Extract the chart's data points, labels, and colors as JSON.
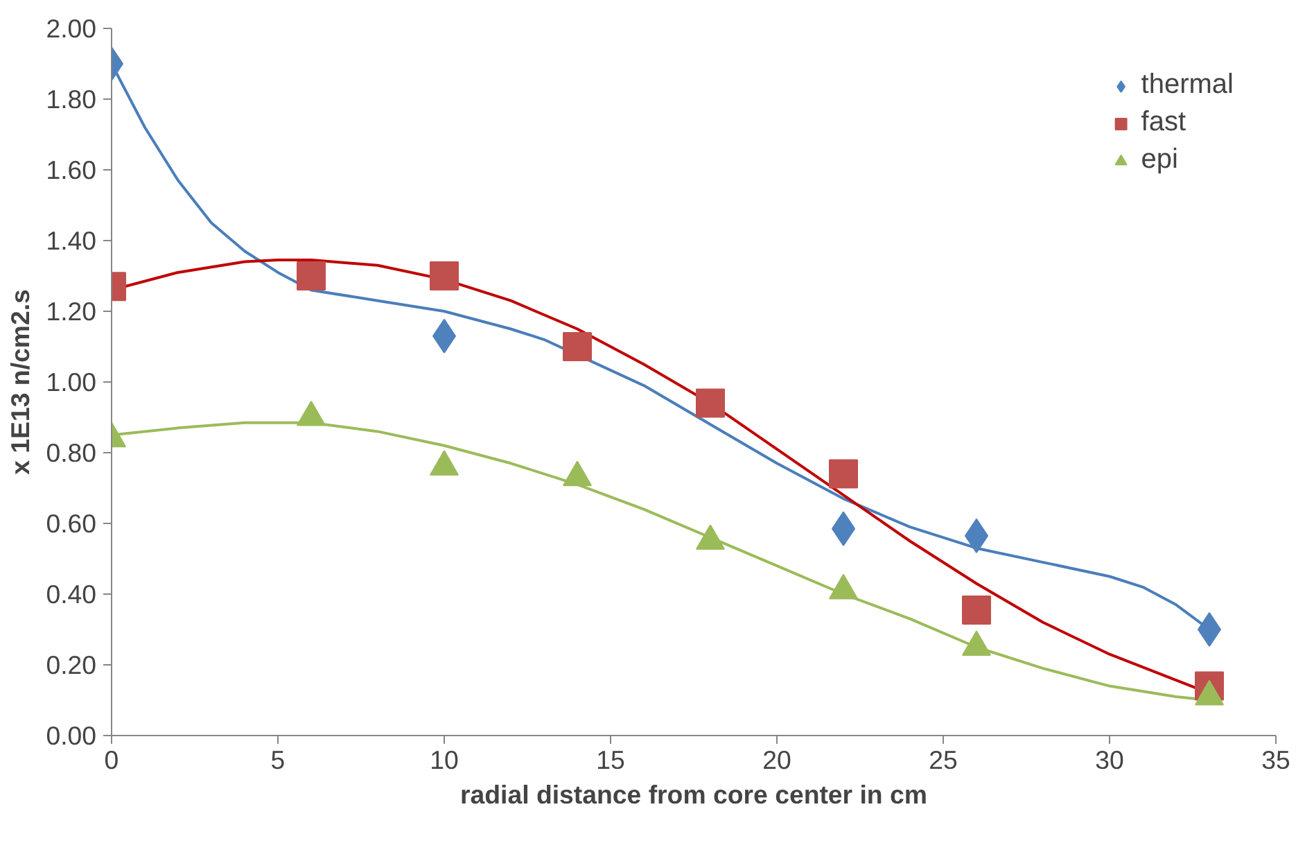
{
  "chart_data": {
    "type": "scatter",
    "xlabel": "radial distance from core center in cm",
    "ylabel": "x 1E13 n/cm2.s",
    "xlim": [
      0,
      35
    ],
    "xticks": [
      0,
      5,
      10,
      15,
      20,
      25,
      30,
      35
    ],
    "ylim": [
      0,
      2
    ],
    "yticks": [
      {
        "value": 0,
        "label": "0.00"
      },
      {
        "value": 0.2,
        "label": "0.20"
      },
      {
        "value": 0.4,
        "label": "0.40"
      },
      {
        "value": 0.6,
        "label": "0.60"
      },
      {
        "value": 0.8,
        "label": "0.80"
      },
      {
        "value": 1.0,
        "label": "1.00"
      },
      {
        "value": 1.2,
        "label": "1.20"
      },
      {
        "value": 1.4,
        "label": "1.40"
      },
      {
        "value": 1.6,
        "label": "1.60"
      },
      {
        "value": 1.8,
        "label": "1.80"
      },
      {
        "value": 2.0,
        "label": "2.00"
      }
    ],
    "grid": false,
    "legend": "top right",
    "series": [
      {
        "type": "line",
        "color": "#4a7ebb",
        "x": [
          0,
          1,
          2,
          3,
          4,
          5,
          6,
          8,
          10,
          12,
          13,
          16,
          18,
          20,
          22,
          24,
          26,
          28,
          30,
          31,
          32,
          33
        ],
        "values": [
          1.9,
          1.72,
          1.57,
          1.45,
          1.37,
          1.31,
          1.26,
          1.23,
          1.2,
          1.15,
          1.12,
          0.99,
          0.88,
          0.77,
          0.67,
          0.59,
          0.53,
          0.49,
          0.45,
          0.42,
          0.37,
          0.3
        ],
        "marker": "none"
      },
      {
        "type": "line",
        "color": "#c00000",
        "x": [
          0,
          2,
          4,
          5,
          6,
          8,
          10,
          12,
          14,
          16,
          18,
          20,
          22,
          24,
          26,
          28,
          30,
          33
        ],
        "values": [
          1.26,
          1.31,
          1.34,
          1.345,
          1.345,
          1.33,
          1.29,
          1.23,
          1.15,
          1.05,
          0.94,
          0.81,
          0.68,
          0.55,
          0.43,
          0.32,
          0.23,
          0.12
        ],
        "marker": "none"
      },
      {
        "type": "line",
        "color": "#9bbb59",
        "x": [
          0,
          2,
          4,
          6,
          8,
          10,
          12,
          14,
          16,
          18,
          20,
          22,
          24,
          26,
          28,
          30,
          32,
          33
        ],
        "values": [
          0.85,
          0.87,
          0.885,
          0.885,
          0.86,
          0.82,
          0.77,
          0.71,
          0.64,
          0.56,
          0.48,
          0.4,
          0.33,
          0.25,
          0.19,
          0.14,
          0.11,
          0.1
        ],
        "marker": "none"
      },
      {
        "name": "thermal",
        "color": "#4f81bd",
        "marker": "diamond",
        "x": [
          0,
          6,
          10,
          14,
          18,
          22,
          26,
          33
        ],
        "values": [
          1.9,
          null,
          1.13,
          null,
          null,
          0.585,
          0.565,
          0.3
        ]
      },
      {
        "name": "fast",
        "color": "#c0504d",
        "marker": "square",
        "x": [
          0,
          6,
          10,
          14,
          18,
          22,
          26,
          33
        ],
        "values": [
          1.27,
          1.3,
          1.3,
          1.1,
          0.94,
          0.74,
          0.355,
          0.14
        ]
      },
      {
        "name": "epi",
        "color": "#9bbb59",
        "marker": "triangle",
        "x": [
          0,
          6,
          10,
          14,
          18,
          22,
          26,
          33
        ],
        "values": [
          0.84,
          0.9,
          0.76,
          0.73,
          0.55,
          0.41,
          0.25,
          0.11
        ]
      }
    ]
  }
}
